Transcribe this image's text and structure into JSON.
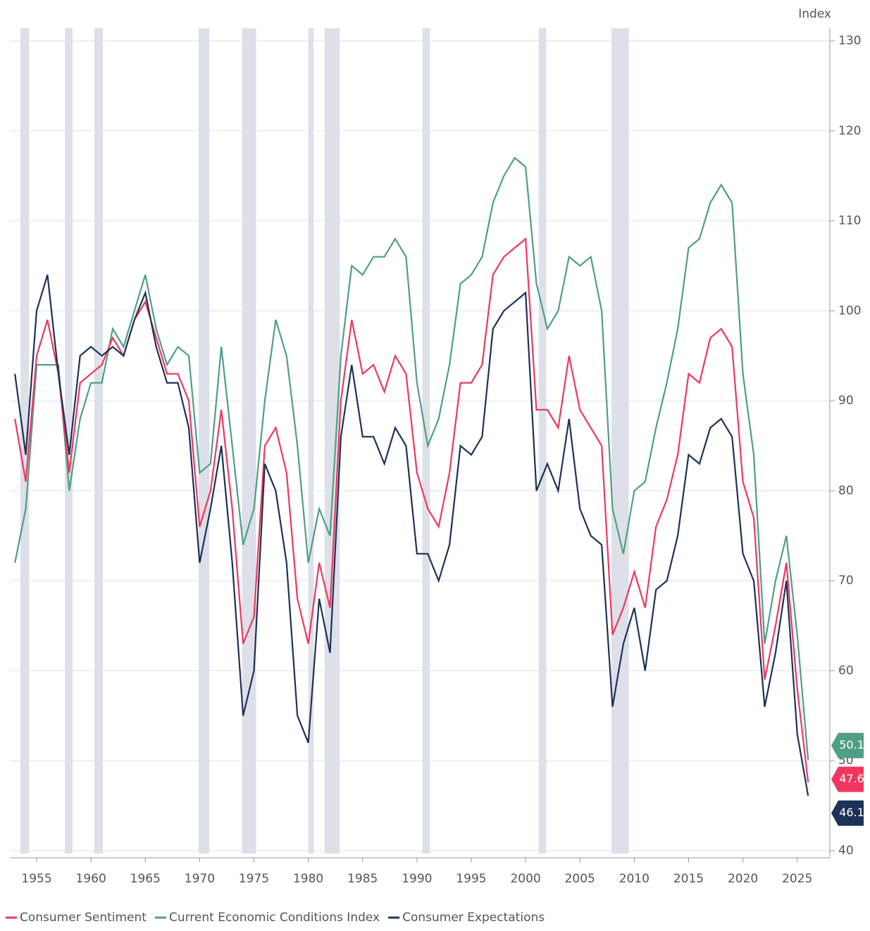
{
  "chart_data": {
    "type": "line",
    "y_axis_label": "Index",
    "x": [
      1953,
      1954,
      1955,
      1956,
      1957,
      1958,
      1959,
      1960,
      1961,
      1962,
      1963,
      1964,
      1965,
      1966,
      1967,
      1968,
      1969,
      1970,
      1971,
      1972,
      1973,
      1974,
      1975,
      1976,
      1977,
      1978,
      1979,
      1980,
      1981,
      1982,
      1983,
      1984,
      1985,
      1986,
      1987,
      1988,
      1989,
      1990,
      1991,
      1992,
      1993,
      1994,
      1995,
      1996,
      1997,
      1998,
      1999,
      2000,
      2001,
      2002,
      2003,
      2004,
      2005,
      2006,
      2007,
      2008,
      2009,
      2010,
      2011,
      2012,
      2013,
      2014,
      2015,
      2016,
      2017,
      2018,
      2019,
      2020,
      2021,
      2022,
      2023,
      2024,
      2025,
      2026
    ],
    "series": [
      {
        "name": "Consumer Sentiment",
        "color": "#f0365f",
        "values": [
          88,
          81,
          95,
          99,
          93,
          82,
          92,
          93,
          94,
          97,
          95,
          99,
          101,
          97,
          93,
          93,
          90,
          76,
          80,
          89,
          78,
          63,
          66,
          85,
          87,
          82,
          68,
          63,
          72,
          67,
          90,
          99,
          93,
          94,
          91,
          95,
          93,
          82,
          78,
          76,
          82,
          92,
          92,
          94,
          104,
          106,
          107,
          108,
          89,
          89,
          87,
          95,
          89,
          87,
          85,
          64,
          67,
          71,
          67,
          76,
          79,
          84,
          93,
          92,
          97,
          98,
          96,
          81,
          77,
          59,
          65,
          72,
          58,
          47.6
        ]
      },
      {
        "name": "Current Economic Conditions Index",
        "color": "#4f9e86",
        "values": [
          72,
          78,
          94,
          94,
          94,
          80,
          88,
          92,
          92,
          98,
          96,
          100,
          104,
          98,
          94,
          96,
          95,
          82,
          83,
          96,
          85,
          74,
          78,
          90,
          99,
          95,
          85,
          72,
          78,
          75,
          95,
          105,
          104,
          106,
          106,
          108,
          106,
          92,
          85,
          88,
          94,
          103,
          104,
          106,
          112,
          115,
          117,
          116,
          103,
          98,
          100,
          106,
          105,
          106,
          100,
          78,
          73,
          80,
          81,
          87,
          92,
          98,
          107,
          108,
          112,
          114,
          112,
          93,
          84,
          63,
          70,
          75,
          64,
          50.1
        ]
      },
      {
        "name": "Consumer Expectations",
        "color": "#1c3157",
        "values": [
          93,
          84,
          100,
          104,
          93,
          84,
          95,
          96,
          95,
          96,
          95,
          99,
          102,
          96,
          92,
          92,
          87,
          72,
          78,
          85,
          72,
          55,
          60,
          83,
          80,
          72,
          55,
          52,
          68,
          62,
          86,
          94,
          86,
          86,
          83,
          87,
          85,
          73,
          73,
          70,
          74,
          85,
          84,
          86,
          98,
          100,
          101,
          102,
          80,
          83,
          80,
          88,
          78,
          75,
          74,
          56,
          63,
          67,
          60,
          69,
          70,
          75,
          84,
          83,
          87,
          88,
          86,
          73,
          70,
          56,
          62,
          70,
          53,
          46.1
        ]
      }
    ],
    "recessions": [
      [
        1953.5,
        1954.3
      ],
      [
        1957.6,
        1958.3
      ],
      [
        1960.3,
        1961.1
      ],
      [
        1969.9,
        1970.9
      ],
      [
        1973.9,
        1975.2
      ],
      [
        1980.0,
        1980.5
      ],
      [
        1981.5,
        1982.9
      ],
      [
        1990.5,
        1991.2
      ],
      [
        2001.2,
        2001.9
      ],
      [
        2007.9,
        2009.5
      ]
    ],
    "xlim": [
      1952.6,
      2028
    ],
    "xticks": [
      1955,
      1960,
      1965,
      1970,
      1975,
      1980,
      1985,
      1990,
      1995,
      2000,
      2005,
      2010,
      2015,
      2020,
      2025
    ],
    "ylim": [
      40,
      130
    ],
    "yticks": [
      40,
      50,
      60,
      70,
      80,
      90,
      100,
      110,
      120,
      130
    ],
    "grid": true
  }
}
